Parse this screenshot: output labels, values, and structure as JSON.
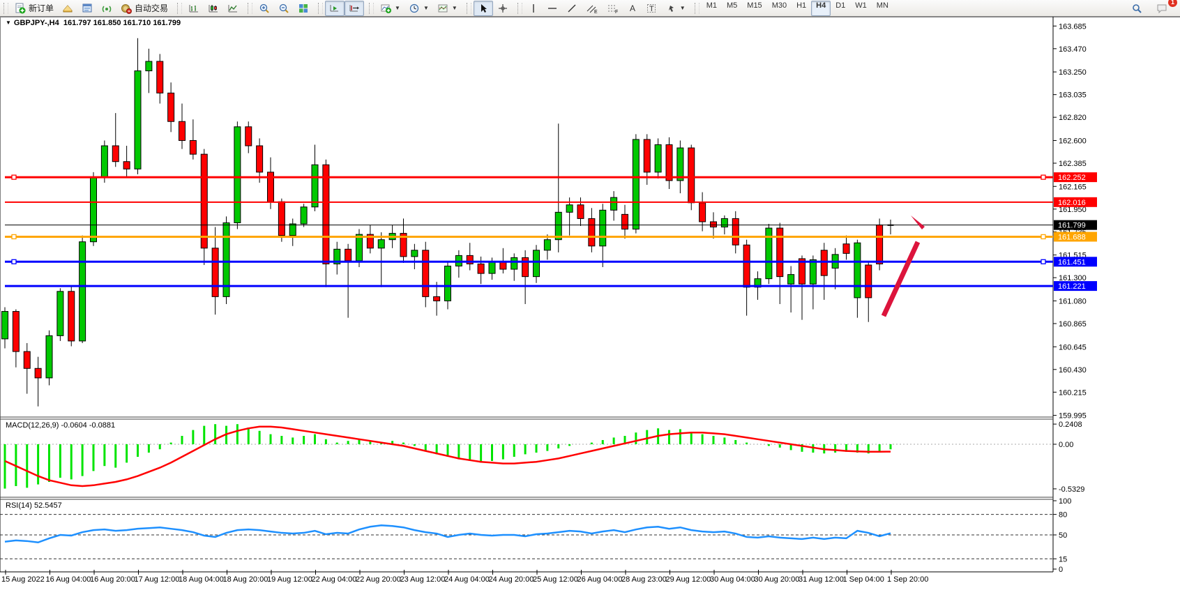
{
  "toolbar": {
    "new_order_label": "新订单",
    "auto_trading_label": "自动交易",
    "timeframes": [
      "M1",
      "M5",
      "M15",
      "M30",
      "H1",
      "H4",
      "D1",
      "W1",
      "MN"
    ],
    "active_timeframe": "H4",
    "notification_badge": "1"
  },
  "chart": {
    "symbol": "GBPJPY-,H4",
    "quote": "161.797 161.850 161.710 161.799",
    "macd_label": "MACD(12,26,9) -0.0604 -0.0881",
    "rsi_label": "RSI(14) 52.5457"
  },
  "chart_data": {
    "type": "candlestick",
    "symbol": "GBPJPY-,H4",
    "timeframe": "H4",
    "ohlc_display": {
      "open": "161.797",
      "high": "161.850",
      "low": "161.710",
      "close": "161.799"
    },
    "colors": {
      "bull": "#00C800",
      "bear": "#FF0000",
      "wick": "#000000",
      "macd_hist": "#00E400",
      "macd_signal": "#FF0000",
      "rsi_line": "#1E90FF",
      "arrow": "#DC143C",
      "line_red": "#FF0000",
      "line_orange": "#FFA500",
      "line_blue": "#0000FF",
      "line_black": "#000000"
    },
    "price_axis": {
      "ticks": [
        163.685,
        163.47,
        163.25,
        163.035,
        162.82,
        162.6,
        162.385,
        162.165,
        161.95,
        161.735,
        161.515,
        161.3,
        161.08,
        160.865,
        160.645,
        160.43,
        160.215,
        159.995
      ]
    },
    "hlines": [
      {
        "price": 162.252,
        "color": "#FF0000",
        "width": 3,
        "handles": true
      },
      {
        "price": 162.016,
        "color": "#FF0000",
        "width": 2,
        "handles": false
      },
      {
        "price": 161.799,
        "color": "#000000",
        "width": 1,
        "handles": false
      },
      {
        "price": 161.688,
        "color": "#FFA500",
        "width": 3,
        "handles": true
      },
      {
        "price": 161.451,
        "color": "#0000FF",
        "width": 3,
        "handles": true
      },
      {
        "price": 161.221,
        "color": "#0000FF",
        "width": 3,
        "handles": false
      }
    ],
    "candles": [
      [
        160.72,
        161.02,
        160.63,
        160.98
      ],
      [
        160.98,
        161.0,
        160.45,
        160.6
      ],
      [
        160.6,
        160.68,
        160.2,
        160.44
      ],
      [
        160.44,
        160.55,
        160.08,
        160.35
      ],
      [
        160.35,
        160.8,
        160.28,
        160.75
      ],
      [
        160.75,
        161.2,
        160.7,
        161.17
      ],
      [
        161.17,
        161.22,
        160.65,
        160.7
      ],
      [
        160.7,
        161.7,
        160.68,
        161.64
      ],
      [
        161.64,
        162.3,
        161.6,
        162.25
      ],
      [
        162.25,
        162.6,
        162.2,
        162.55
      ],
      [
        162.55,
        162.86,
        162.35,
        162.4
      ],
      [
        162.4,
        162.55,
        162.25,
        162.33
      ],
      [
        162.33,
        163.57,
        162.28,
        163.26
      ],
      [
        163.26,
        163.47,
        163.05,
        163.35
      ],
      [
        163.35,
        163.42,
        162.95,
        163.05
      ],
      [
        163.05,
        163.15,
        162.68,
        162.78
      ],
      [
        162.78,
        162.95,
        162.52,
        162.6
      ],
      [
        162.6,
        162.8,
        162.42,
        162.47
      ],
      [
        162.47,
        162.52,
        161.42,
        161.58
      ],
      [
        161.58,
        161.78,
        160.95,
        161.12
      ],
      [
        161.12,
        161.88,
        161.05,
        161.82
      ],
      [
        161.82,
        162.78,
        161.76,
        162.73
      ],
      [
        162.73,
        162.78,
        162.48,
        162.55
      ],
      [
        162.55,
        162.62,
        162.2,
        162.3
      ],
      [
        162.3,
        162.44,
        161.95,
        162.02
      ],
      [
        162.02,
        162.05,
        161.64,
        161.7
      ],
      [
        161.7,
        161.86,
        161.6,
        161.81
      ],
      [
        161.81,
        162.0,
        161.78,
        161.97
      ],
      [
        161.97,
        162.56,
        161.93,
        162.37
      ],
      [
        162.37,
        162.42,
        161.21,
        161.43
      ],
      [
        161.43,
        161.64,
        161.33,
        161.57
      ],
      [
        161.57,
        161.62,
        160.92,
        161.46
      ],
      [
        161.46,
        161.76,
        161.4,
        161.71
      ],
      [
        161.71,
        161.8,
        161.53,
        161.58
      ],
      [
        161.58,
        161.73,
        161.21,
        161.66
      ],
      [
        161.66,
        161.8,
        161.58,
        161.72
      ],
      [
        161.72,
        161.86,
        161.44,
        161.5
      ],
      [
        161.5,
        161.62,
        161.38,
        161.56
      ],
      [
        161.56,
        161.64,
        161.02,
        161.12
      ],
      [
        161.12,
        161.26,
        160.94,
        161.08
      ],
      [
        161.08,
        161.46,
        161.0,
        161.41
      ],
      [
        161.41,
        161.56,
        161.3,
        161.51
      ],
      [
        161.51,
        161.63,
        161.37,
        161.43
      ],
      [
        161.43,
        161.5,
        161.24,
        161.34
      ],
      [
        161.34,
        161.49,
        161.28,
        161.45
      ],
      [
        161.45,
        161.58,
        161.34,
        161.38
      ],
      [
        161.38,
        161.53,
        161.27,
        161.49
      ],
      [
        161.49,
        161.56,
        161.05,
        161.31
      ],
      [
        161.31,
        161.61,
        161.25,
        161.56
      ],
      [
        161.56,
        161.71,
        161.47,
        161.66
      ],
      [
        161.66,
        162.76,
        161.54,
        161.92
      ],
      [
        161.92,
        162.06,
        161.7,
        161.99
      ],
      [
        161.99,
        162.06,
        161.79,
        161.86
      ],
      [
        161.86,
        161.96,
        161.54,
        161.6
      ],
      [
        161.6,
        162.0,
        161.4,
        161.94
      ],
      [
        161.94,
        162.12,
        161.84,
        162.06
      ],
      [
        161.9,
        161.99,
        161.67,
        161.76
      ],
      [
        161.76,
        162.66,
        161.72,
        162.61
      ],
      [
        162.61,
        162.66,
        162.18,
        162.3
      ],
      [
        162.3,
        162.62,
        162.24,
        162.56
      ],
      [
        162.56,
        162.63,
        162.14,
        162.22
      ],
      [
        162.22,
        162.6,
        162.1,
        162.53
      ],
      [
        162.53,
        162.56,
        161.94,
        162.01
      ],
      [
        162.01,
        162.11,
        161.74,
        161.83
      ],
      [
        161.83,
        161.92,
        161.67,
        161.78
      ],
      [
        161.78,
        161.89,
        161.71,
        161.86
      ],
      [
        161.86,
        161.93,
        161.53,
        161.61
      ],
      [
        161.61,
        161.66,
        160.94,
        161.21
      ],
      [
        161.21,
        161.36,
        161.09,
        161.29
      ],
      [
        161.29,
        161.81,
        161.24,
        161.77
      ],
      [
        161.77,
        161.82,
        161.05,
        161.31
      ],
      [
        161.24,
        161.41,
        160.97,
        161.33
      ],
      [
        161.48,
        161.51,
        160.9,
        161.24
      ],
      [
        161.24,
        161.51,
        161.0,
        161.47
      ],
      [
        161.56,
        161.63,
        161.09,
        161.32
      ],
      [
        161.39,
        161.58,
        161.19,
        161.52
      ],
      [
        161.62,
        161.7,
        161.47,
        161.53
      ],
      [
        161.11,
        161.66,
        160.92,
        161.63
      ],
      [
        161.42,
        161.46,
        160.88,
        161.11
      ],
      [
        161.8,
        161.86,
        161.37,
        161.43
      ],
      [
        161.797,
        161.85,
        161.71,
        161.799
      ]
    ],
    "dates": [
      "15 Aug 2022",
      "16 Aug 04:00",
      "16 Aug 20:00",
      "17 Aug 12:00",
      "18 Aug 04:00",
      "18 Aug 20:00",
      "19 Aug 12:00",
      "22 Aug 04:00",
      "22 Aug 20:00",
      "23 Aug 12:00",
      "24 Aug 04:00",
      "24 Aug 20:00",
      "25 Aug 12:00",
      "26 Aug 04:00",
      "28 Aug 23:00",
      "29 Aug 12:00",
      "30 Aug 04:00",
      "30 Aug 20:00",
      "31 Aug 12:00",
      "1 Sep 04:00",
      "1 Sep 20:00"
    ],
    "macd": {
      "params": "MACD(12,26,9)",
      "main_value": -0.0604,
      "signal_value": -0.0881,
      "ticks": [
        0.2408,
        0.0,
        -0.5329
      ],
      "hist": [
        -0.53,
        -0.5,
        -0.52,
        -0.48,
        -0.45,
        -0.4,
        -0.42,
        -0.38,
        -0.32,
        -0.26,
        -0.28,
        -0.22,
        -0.15,
        -0.1,
        -0.06,
        0.02,
        0.1,
        0.17,
        0.22,
        0.24,
        0.22,
        0.24,
        0.2,
        0.16,
        0.12,
        0.1,
        0.08,
        0.1,
        0.12,
        0.06,
        0.02,
        0.04,
        0.06,
        0.04,
        0.02,
        0.04,
        0.02,
        -0.02,
        -0.08,
        -0.12,
        -0.15,
        -0.18,
        -0.2,
        -0.22,
        -0.2,
        -0.18,
        -0.15,
        -0.12,
        -0.1,
        -0.08,
        -0.05,
        -0.02,
        0.0,
        0.02,
        0.05,
        0.08,
        0.1,
        0.14,
        0.17,
        0.19,
        0.17,
        0.18,
        0.15,
        0.12,
        0.1,
        0.08,
        0.05,
        0.02,
        0.0,
        -0.02,
        -0.04,
        -0.07,
        -0.09,
        -0.1,
        -0.11,
        -0.1,
        -0.09,
        -0.1,
        -0.11,
        -0.08,
        -0.0604
      ],
      "signal": [
        -0.2,
        -0.26,
        -0.32,
        -0.38,
        -0.43,
        -0.46,
        -0.49,
        -0.5,
        -0.49,
        -0.47,
        -0.45,
        -0.42,
        -0.38,
        -0.33,
        -0.28,
        -0.22,
        -0.15,
        -0.08,
        -0.01,
        0.06,
        0.12,
        0.16,
        0.19,
        0.21,
        0.21,
        0.2,
        0.18,
        0.16,
        0.14,
        0.12,
        0.1,
        0.08,
        0.06,
        0.04,
        0.02,
        0.0,
        -0.02,
        -0.05,
        -0.08,
        -0.11,
        -0.14,
        -0.17,
        -0.19,
        -0.21,
        -0.22,
        -0.23,
        -0.23,
        -0.22,
        -0.21,
        -0.19,
        -0.17,
        -0.14,
        -0.11,
        -0.08,
        -0.05,
        -0.02,
        0.01,
        0.04,
        0.07,
        0.1,
        0.12,
        0.13,
        0.14,
        0.14,
        0.13,
        0.12,
        0.1,
        0.08,
        0.06,
        0.04,
        0.02,
        0.0,
        -0.02,
        -0.04,
        -0.06,
        -0.07,
        -0.08,
        -0.085,
        -0.09,
        -0.09,
        -0.0881
      ]
    },
    "rsi": {
      "params": "RSI(14)",
      "value": 52.5457,
      "levels": [
        80,
        50,
        15
      ],
      "ticks": [
        100,
        80,
        50,
        15,
        0
      ],
      "values": [
        40,
        42,
        41,
        39,
        45,
        50,
        49,
        54,
        57,
        58,
        56,
        57,
        59,
        60,
        61,
        59,
        57,
        54,
        49,
        47,
        53,
        57,
        58,
        57,
        55,
        53,
        52,
        53,
        56,
        51,
        53,
        52,
        58,
        62,
        64,
        63,
        61,
        57,
        54,
        52,
        47,
        50,
        52,
        50,
        49,
        50,
        50,
        48,
        51,
        52,
        54,
        56,
        55,
        52,
        55,
        57,
        54,
        58,
        61,
        62,
        59,
        61,
        57,
        55,
        54,
        55,
        52,
        47,
        46,
        48,
        46,
        45,
        44,
        46,
        44,
        46,
        45,
        56,
        53,
        48,
        52.5
      ]
    },
    "annotation_arrow": {
      "from": [
        1267,
        453
      ],
      "to": [
        1316,
        347
      ],
      "tip": [
        1326,
        325
      ],
      "color": "#DC143C"
    }
  }
}
